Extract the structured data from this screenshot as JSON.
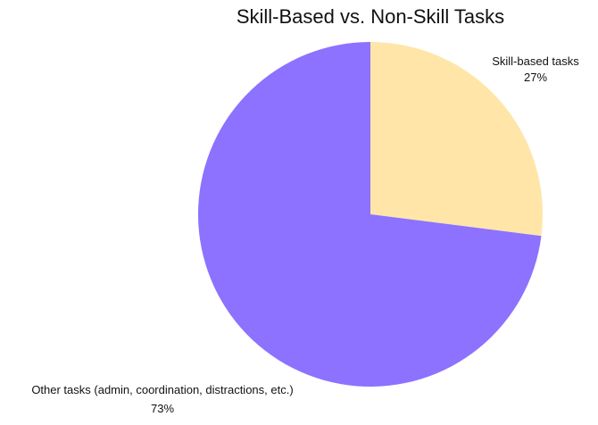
{
  "chart_data": {
    "type": "pie",
    "title": "Skill-Based vs. Non-Skill Tasks",
    "slices": [
      {
        "label": "Skill-based tasks",
        "value": 27,
        "value_label": "27%",
        "color": "#FFE6A8"
      },
      {
        "label": "Other tasks (admin, coordination, distractions, etc.)",
        "value": 73,
        "value_label": "73%",
        "color": "#8C72FF"
      }
    ],
    "start": "top",
    "direction": "clockwise",
    "legend": "none"
  }
}
